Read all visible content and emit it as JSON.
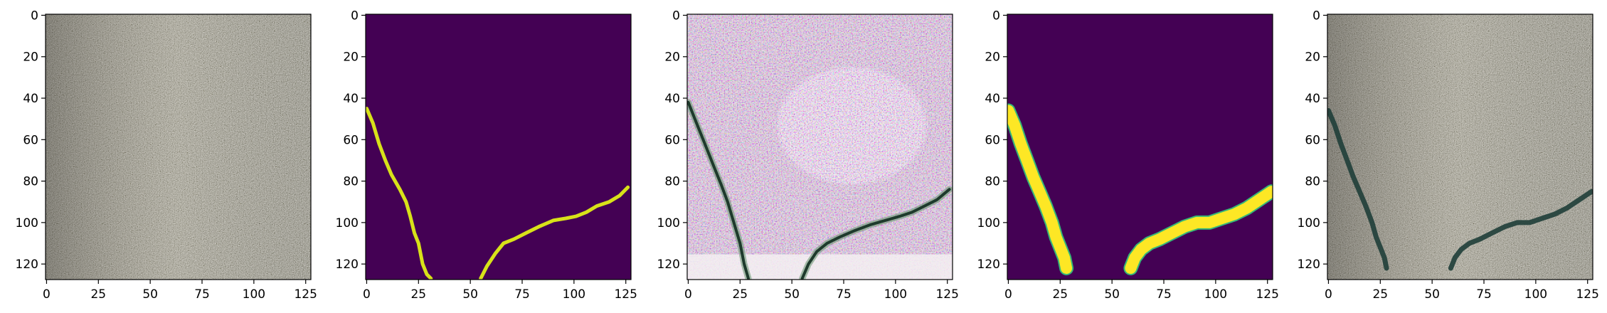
{
  "chart_data": [
    {
      "type": "heatmap",
      "panel": 1,
      "content": "rgb-image",
      "xlim": [
        0,
        127
      ],
      "ylim": [
        127,
        0
      ],
      "xticks": [
        0,
        25,
        50,
        75,
        100,
        125
      ],
      "yticks": [
        0,
        20,
        40,
        60,
        80,
        100,
        120
      ],
      "colors": {
        "base": "#8f8a7c",
        "tint": "#a59d8c"
      }
    },
    {
      "type": "heatmap",
      "panel": 2,
      "content": "mask",
      "xlim": [
        0,
        127
      ],
      "ylim": [
        127,
        0
      ],
      "xticks": [
        0,
        25,
        50,
        75,
        100,
        125
      ],
      "yticks": [
        0,
        20,
        40,
        60,
        80,
        100,
        120
      ],
      "colors": {
        "background": "#440154",
        "foreground": "#d8e219"
      },
      "curves": [
        [
          [
            0,
            45
          ],
          [
            3,
            52
          ],
          [
            6,
            62
          ],
          [
            9,
            70
          ],
          [
            12,
            77
          ],
          [
            16,
            84
          ],
          [
            19,
            90
          ],
          [
            21,
            97
          ],
          [
            23,
            105
          ],
          [
            25,
            110
          ],
          [
            26,
            115
          ],
          [
            27,
            120
          ],
          [
            29,
            125
          ],
          [
            31,
            127
          ]
        ],
        [
          [
            55,
            127
          ],
          [
            58,
            121
          ],
          [
            62,
            115
          ],
          [
            66,
            110
          ],
          [
            71,
            108
          ],
          [
            77,
            105
          ],
          [
            83,
            102
          ],
          [
            90,
            99
          ],
          [
            96,
            98
          ],
          [
            101,
            97
          ],
          [
            106,
            95
          ],
          [
            111,
            92
          ],
          [
            117,
            90
          ],
          [
            122,
            87
          ],
          [
            126,
            83
          ]
        ]
      ]
    },
    {
      "type": "heatmap",
      "panel": 3,
      "content": "rgb-image",
      "xlim": [
        0,
        127
      ],
      "ylim": [
        127,
        0
      ],
      "xticks": [
        0,
        25,
        50,
        75,
        100,
        125
      ],
      "yticks": [
        0,
        20,
        40,
        60,
        80,
        100,
        120
      ],
      "colors": {
        "base": "#c8b8c8",
        "light": "#eee6ee",
        "crack": "#1e3a2c"
      },
      "curves": [
        [
          [
            0,
            42
          ],
          [
            4,
            52
          ],
          [
            8,
            62
          ],
          [
            12,
            72
          ],
          [
            16,
            82
          ],
          [
            19,
            90
          ],
          [
            22,
            100
          ],
          [
            25,
            110
          ],
          [
            27,
            120
          ],
          [
            29,
            127
          ]
        ],
        [
          [
            55,
            127
          ],
          [
            58,
            120
          ],
          [
            62,
            114
          ],
          [
            67,
            110
          ],
          [
            73,
            107
          ],
          [
            80,
            104
          ],
          [
            88,
            101
          ],
          [
            95,
            99
          ],
          [
            102,
            97
          ],
          [
            108,
            95
          ],
          [
            114,
            92
          ],
          [
            120,
            89
          ],
          [
            126,
            84
          ]
        ]
      ]
    },
    {
      "type": "heatmap",
      "panel": 4,
      "content": "mask",
      "xlim": [
        0,
        127
      ],
      "ylim": [
        127,
        0
      ],
      "xticks": [
        0,
        25,
        50,
        75,
        100,
        125
      ],
      "yticks": [
        0,
        20,
        40,
        60,
        80,
        100,
        120
      ],
      "colors": {
        "background": "#440154",
        "foreground": "#fde725",
        "edge": "#35b779"
      },
      "curves": [
        [
          [
            0,
            46
          ],
          [
            3,
            53
          ],
          [
            6,
            62
          ],
          [
            9,
            70
          ],
          [
            12,
            78
          ],
          [
            15,
            85
          ],
          [
            18,
            92
          ],
          [
            21,
            100
          ],
          [
            23,
            107
          ],
          [
            25,
            112
          ],
          [
            27,
            117
          ],
          [
            28,
            122
          ]
        ],
        [
          [
            59,
            122
          ],
          [
            61,
            117
          ],
          [
            64,
            113
          ],
          [
            68,
            110
          ],
          [
            73,
            108
          ],
          [
            79,
            105
          ],
          [
            85,
            102
          ],
          [
            91,
            100
          ],
          [
            97,
            100
          ],
          [
            103,
            98
          ],
          [
            109,
            96
          ],
          [
            115,
            93
          ],
          [
            121,
            89
          ],
          [
            127,
            85
          ]
        ]
      ]
    },
    {
      "type": "heatmap",
      "panel": 5,
      "content": "rgb-image",
      "xlim": [
        0,
        127
      ],
      "ylim": [
        127,
        0
      ],
      "xticks": [
        0,
        25,
        50,
        75,
        100,
        125
      ],
      "yticks": [
        0,
        20,
        40,
        60,
        80,
        100,
        120
      ],
      "colors": {
        "base": "#8f8a7c",
        "tint": "#a59d8c",
        "crack": "#1f3e38"
      },
      "curves": [
        [
          [
            0,
            46
          ],
          [
            3,
            53
          ],
          [
            6,
            62
          ],
          [
            9,
            70
          ],
          [
            12,
            78
          ],
          [
            15,
            85
          ],
          [
            18,
            92
          ],
          [
            21,
            100
          ],
          [
            23,
            107
          ],
          [
            25,
            112
          ],
          [
            27,
            117
          ],
          [
            28,
            122
          ]
        ],
        [
          [
            59,
            122
          ],
          [
            61,
            117
          ],
          [
            64,
            113
          ],
          [
            68,
            110
          ],
          [
            73,
            108
          ],
          [
            79,
            105
          ],
          [
            85,
            102
          ],
          [
            91,
            100
          ],
          [
            97,
            100
          ],
          [
            103,
            98
          ],
          [
            109,
            96
          ],
          [
            115,
            93
          ],
          [
            121,
            89
          ],
          [
            127,
            85
          ]
        ]
      ]
    }
  ]
}
